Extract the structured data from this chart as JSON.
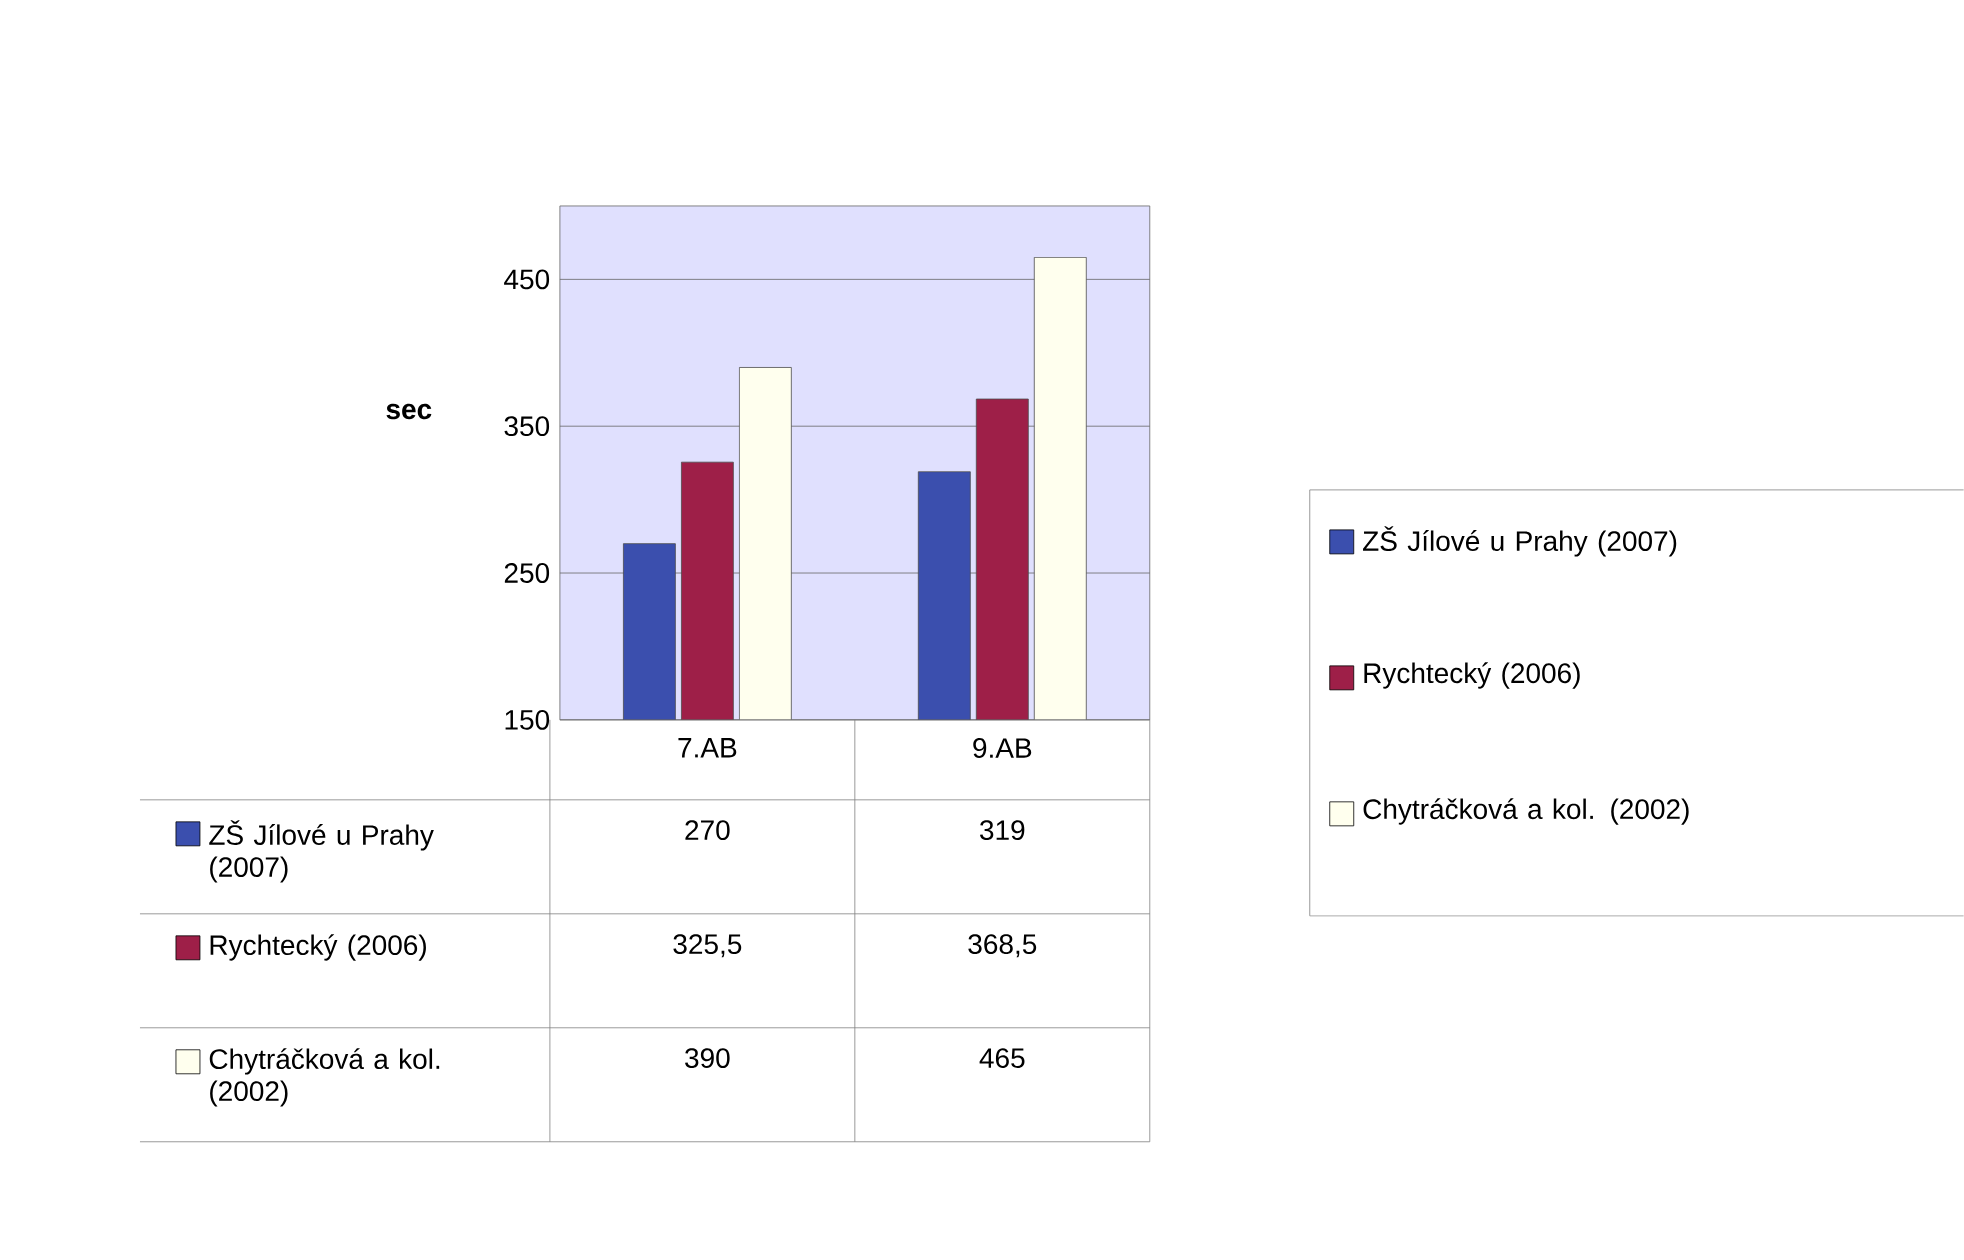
{
  "chart_data": {
    "type": "bar",
    "ylabel": "sec",
    "categories": [
      "7.AB",
      "9.AB"
    ],
    "series": [
      {
        "name": "ZŠ Jílové u Prahy (2007)",
        "color": "#3b4fae",
        "values": [
          270,
          319
        ],
        "value_labels": [
          "270",
          "319"
        ]
      },
      {
        "name": "Rychtecký (2006)",
        "color": "#9e1f48",
        "values": [
          325.5,
          368.5
        ],
        "value_labels": [
          "325,5",
          "368,5"
        ]
      },
      {
        "name": "Chytráčková a kol. (2002)",
        "color": "#ffffee",
        "values": [
          390,
          465
        ],
        "value_labels": [
          "390",
          "465"
        ]
      }
    ],
    "ylim": [
      150,
      500
    ],
    "yticks": [
      150,
      250,
      350,
      450
    ],
    "grid": "y",
    "legend": "right"
  }
}
